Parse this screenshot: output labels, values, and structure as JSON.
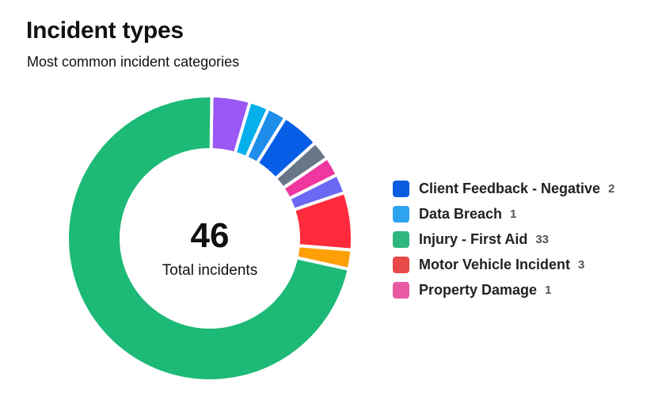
{
  "header": {
    "title": "Incident types",
    "subtitle": "Most common incident categories"
  },
  "center": {
    "value": "46",
    "label": "Total incidents"
  },
  "legend": [
    {
      "label": "Client Feedback - Negative",
      "count": "2",
      "color": "#0a5de0"
    },
    {
      "label": "Data Breach",
      "count": "1",
      "color": "#2ea4ef"
    },
    {
      "label": "Injury - First Aid",
      "count": "33",
      "color": "#2fb67f"
    },
    {
      "label": "Motor Vehicle Incident",
      "count": "3",
      "color": "#e84848"
    },
    {
      "label": "Property Damage",
      "count": "1",
      "color": "#e75aa3"
    }
  ],
  "chart_data": {
    "type": "pie",
    "total": 46,
    "segments": [
      {
        "label": "",
        "value": 2,
        "color": "#9a57f5"
      },
      {
        "label": "",
        "value": 1,
        "color": "#05b0ec"
      },
      {
        "label": "Data Breach",
        "value": 1,
        "color": "#1e8eea"
      },
      {
        "label": "Client Feedback - Negative",
        "value": 2,
        "color": "#075ee6"
      },
      {
        "label": "",
        "value": 1,
        "color": "#687787"
      },
      {
        "label": "Property Damage",
        "value": 1,
        "color": "#f0369f"
      },
      {
        "label": "",
        "value": 1,
        "color": "#6b68f4"
      },
      {
        "label": "Motor Vehicle Incident",
        "value": 3,
        "color": "#ff2b3c"
      },
      {
        "label": "",
        "value": 1,
        "color": "#ff9f06"
      },
      {
        "label": "Injury - First Aid",
        "value": 33,
        "color": "#1db976"
      }
    ],
    "legend_position": "right"
  }
}
